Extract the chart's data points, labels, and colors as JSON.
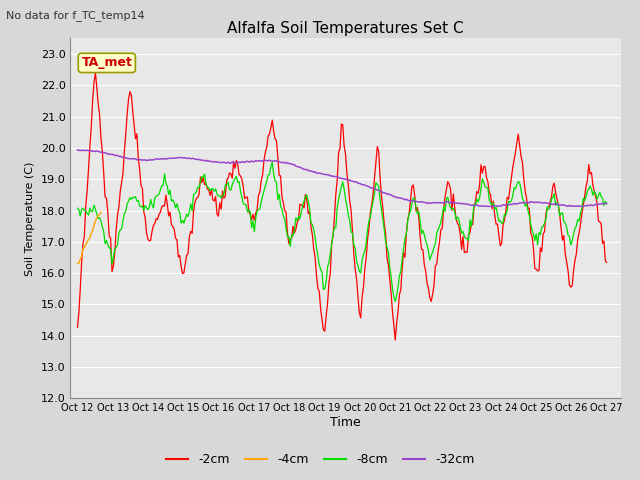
{
  "title": "Alfalfa Soil Temperatures Set C",
  "subtitle": "No data for f_TC_temp14",
  "ylabel": "Soil Temperature (C)",
  "xlabel": "Time",
  "annotation": "TA_met",
  "ylim": [
    12.0,
    23.5
  ],
  "yticks": [
    12.0,
    13.0,
    14.0,
    15.0,
    16.0,
    17.0,
    18.0,
    19.0,
    20.0,
    21.0,
    22.0,
    23.0
  ],
  "xtick_labels": [
    "Oct 12",
    "Oct 13",
    "Oct 14",
    "Oct 15",
    "Oct 16",
    "Oct 17",
    "Oct 18",
    "Oct 19",
    "Oct 20",
    "Oct 21",
    "Oct 22",
    "Oct 23",
    "Oct 24",
    "Oct 25",
    "Oct 26",
    "Oct 27"
  ],
  "colors": {
    "red": "#ff0000",
    "orange": "#ffa500",
    "green": "#00dd00",
    "purple": "#9944cc",
    "figure_bg": "#d8d8d8",
    "plot_bg": "#e8e8e8",
    "grid": "#ffffff",
    "annotation_bg": "#ffffcc",
    "annotation_border": "#999900",
    "annotation_text": "#cc0000"
  },
  "legend_labels": [
    "-2cm",
    "-4cm",
    "-8cm",
    "-32cm"
  ],
  "legend_colors": [
    "#ff0000",
    "#ffa500",
    "#00dd00",
    "#9944cc"
  ]
}
